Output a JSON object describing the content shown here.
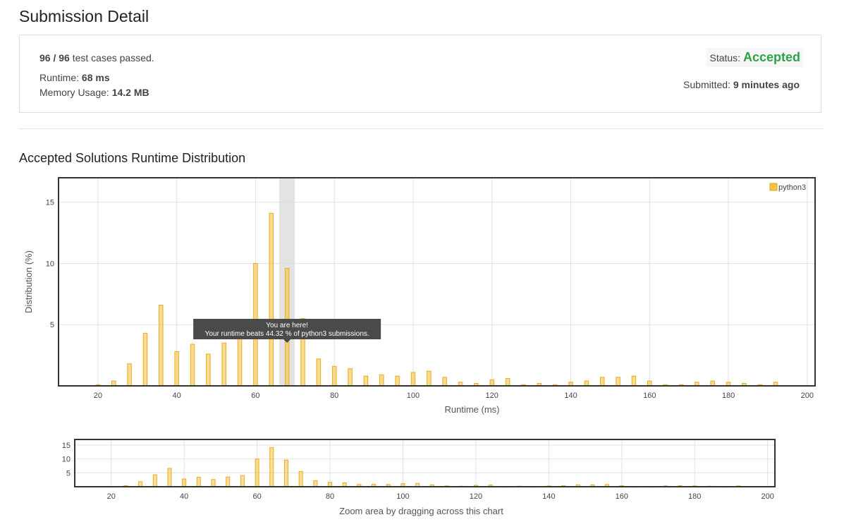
{
  "page": {
    "title": "Submission Detail"
  },
  "summary": {
    "passed": "96 / 96",
    "passed_suffix": "test cases passed.",
    "runtime_label": "Runtime:",
    "runtime_value": "68 ms",
    "memory_label": "Memory Usage:",
    "memory_value": "14.2 MB",
    "status_label": "Status:",
    "status_value": "Accepted",
    "status_color": "#2ca348",
    "submitted_label": "Submitted:",
    "submitted_value": "9 minutes ago"
  },
  "section": {
    "title": "Accepted Solutions Runtime Distribution"
  },
  "chart_data": {
    "type": "bar",
    "xlabel": "Runtime (ms)",
    "ylabel": "Distribution (%)",
    "xlim": [
      10,
      202
    ],
    "ylim": [
      0,
      17
    ],
    "xticks": [
      20,
      40,
      60,
      80,
      100,
      120,
      140,
      160,
      180,
      200
    ],
    "yticks": [
      5,
      10,
      15
    ],
    "grid": true,
    "legend_position": "top-right",
    "bar_color": "#f6c443",
    "series": [
      {
        "name": "python3",
        "x": [
          20,
          24,
          28,
          32,
          36,
          40,
          44,
          48,
          52,
          56,
          60,
          64,
          68,
          72,
          76,
          80,
          84,
          88,
          92,
          96,
          100,
          104,
          108,
          112,
          116,
          120,
          124,
          128,
          132,
          136,
          140,
          144,
          148,
          152,
          156,
          160,
          164,
          168,
          172,
          176,
          180,
          184,
          188,
          192
        ],
        "values": [
          0.1,
          0.4,
          1.8,
          4.3,
          6.6,
          2.8,
          3.4,
          2.6,
          3.5,
          4.0,
          10.0,
          14.1,
          9.6,
          5.5,
          2.2,
          1.6,
          1.4,
          0.8,
          0.9,
          0.8,
          1.1,
          1.2,
          0.7,
          0.3,
          0.2,
          0.5,
          0.6,
          0.1,
          0.2,
          0.1,
          0.3,
          0.4,
          0.7,
          0.7,
          0.8,
          0.4,
          0.1,
          0.1,
          0.3,
          0.4,
          0.3,
          0.2,
          0.1,
          0.3
        ]
      }
    ],
    "highlight": {
      "x": 68,
      "tooltip_title": "You are here!",
      "tooltip_text": "Your runtime beats 44.32 % of python3 submissions."
    },
    "navigator": {
      "yticks": [
        5,
        10,
        15
      ],
      "caption": "Zoom area by dragging across this chart"
    }
  }
}
